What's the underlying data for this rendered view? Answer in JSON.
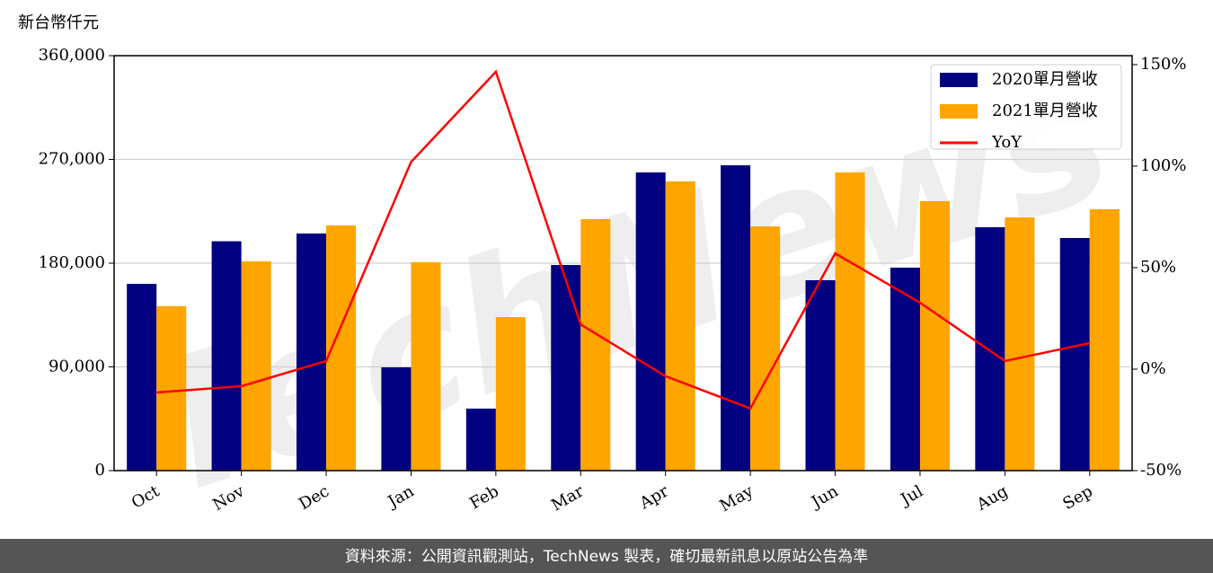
{
  "chart_data": {
    "type": "bar",
    "y_label": "新台幣仟元",
    "watermark": "TechNews",
    "categories": [
      "Oct",
      "Nov",
      "Dec",
      "Jan",
      "Feb",
      "Mar",
      "Apr",
      "May",
      "Jun",
      "Jul",
      "Aug",
      "Sep"
    ],
    "series": [
      {
        "name": "2020單月營收",
        "type": "bar",
        "color": "#000080",
        "values": [
          162000,
          199000,
          205700,
          89600,
          53800,
          178400,
          258700,
          264900,
          165200,
          176100,
          211200,
          201800
        ]
      },
      {
        "name": "2021單月營收",
        "type": "bar",
        "color": "#ffa500",
        "values": [
          142600,
          181600,
          212700,
          180800,
          133200,
          218200,
          250900,
          211900,
          258700,
          233800,
          219700,
          226800
        ]
      },
      {
        "name": "YoY",
        "type": "line",
        "axis": "y2",
        "color": "#ff0000",
        "values": [
          -11.5,
          -8.4,
          4,
          102,
          146.5,
          22,
          -3.5,
          -19.4,
          57,
          32.7,
          4,
          12.8
        ]
      }
    ],
    "ylim": [
      0,
      360000
    ],
    "yticks": [
      {
        "value": 0,
        "label": "0"
      },
      {
        "value": 90000,
        "label": "90,000"
      },
      {
        "value": 180000,
        "label": "180,000"
      },
      {
        "value": 270000,
        "label": "270,000"
      },
      {
        "value": 360000,
        "label": "360,000"
      }
    ],
    "y2lim": [
      -50,
      154.4
    ],
    "y2ticks": [
      {
        "value": -50,
        "label": "-50%"
      },
      {
        "value": 0,
        "label": "0%"
      },
      {
        "value": 50,
        "label": "50%"
      },
      {
        "value": 100,
        "label": "100%"
      },
      {
        "value": 150,
        "label": "150%"
      }
    ],
    "grid": true,
    "legend": "upper right"
  },
  "footer": "資料來源：公開資訊觀測站，TechNews 製表，確切最新訊息以原站公告為準"
}
